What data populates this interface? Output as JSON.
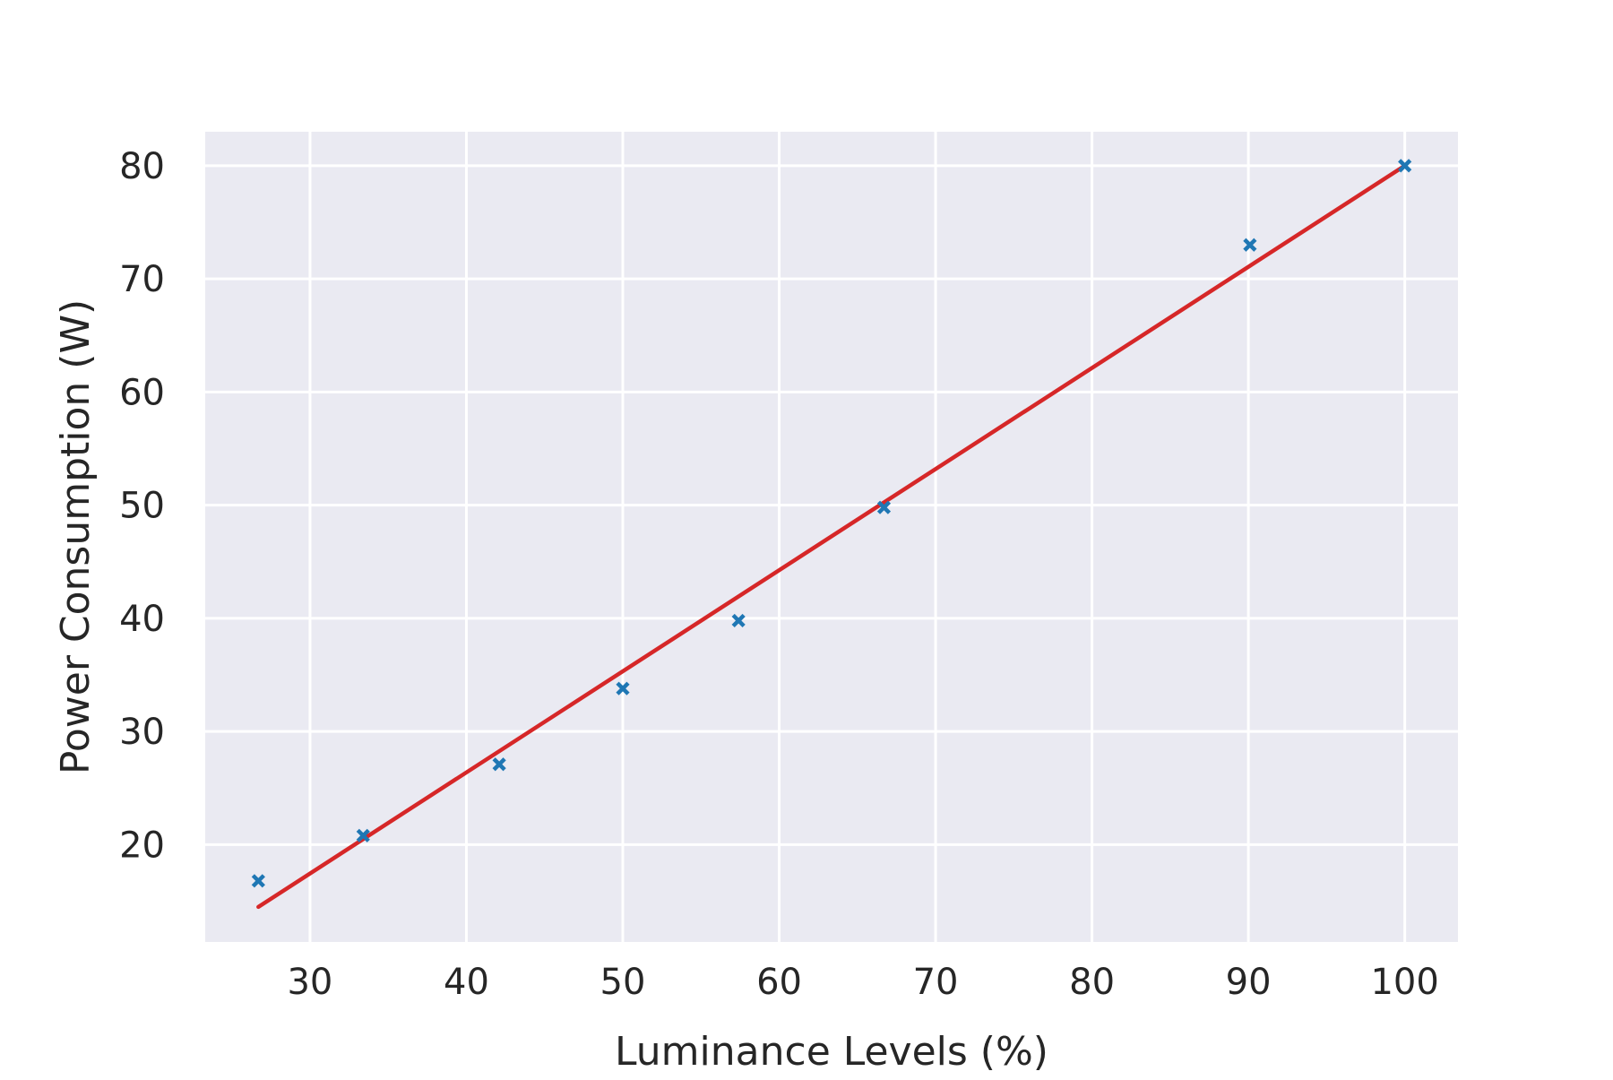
{
  "chart_data": {
    "type": "scatter",
    "title": "",
    "xlabel": "Luminance Levels (%)",
    "ylabel": "Power Consumption (W)",
    "xlim": [
      23.3,
      103.4
    ],
    "ylim": [
      11.4,
      83.0
    ],
    "xticks": [
      30,
      40,
      50,
      60,
      70,
      80,
      90,
      100
    ],
    "yticks": [
      20,
      30,
      40,
      50,
      60,
      70,
      80
    ],
    "grid": true,
    "legend": "none",
    "series": [
      {
        "kind": "scatter",
        "marker": "x",
        "color": "#1f77b4",
        "x": [
          26.7,
          33.4,
          42.1,
          50.0,
          57.4,
          66.7,
          90.1,
          100.0
        ],
        "y": [
          16.8,
          20.8,
          27.1,
          33.8,
          39.8,
          49.8,
          73.0,
          80.0
        ]
      },
      {
        "kind": "line",
        "color": "#d62728",
        "x": [
          26.7,
          100.0
        ],
        "y": [
          14.5,
          80.0
        ]
      }
    ]
  },
  "colors": {
    "plot_background": "#eaeaf2",
    "grid": "#ffffff",
    "text": "#262626"
  }
}
